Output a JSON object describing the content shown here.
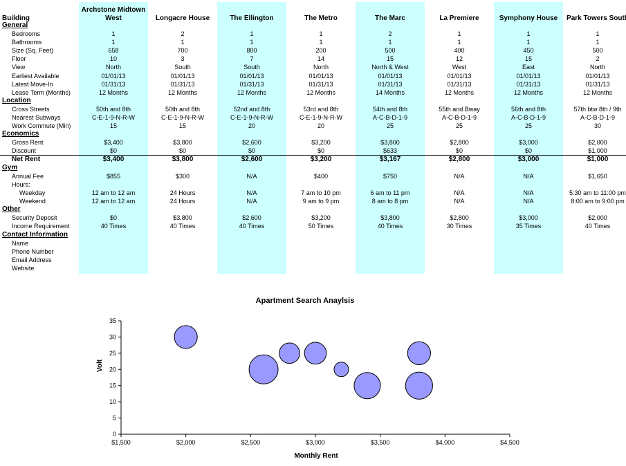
{
  "table": {
    "corner_label": "Building",
    "buildings": [
      "Archstone Midtown West",
      "Longacre House",
      "The Ellington",
      "The Metro",
      "The Marc",
      "La Premiere",
      "Symphony House",
      "Park Towers South"
    ],
    "highlight_color": "#ccffff",
    "rows": [
      {
        "type": "section",
        "label": "General"
      },
      {
        "type": "item",
        "label": "Bedrooms",
        "values": [
          "1",
          "2",
          "1",
          "1",
          "2",
          "1",
          "1",
          "1"
        ]
      },
      {
        "type": "item",
        "label": "Bathrooms",
        "values": [
          "1",
          "1",
          "1",
          "1",
          "1",
          "1",
          "1",
          "1"
        ]
      },
      {
        "type": "item",
        "label": "Size (Sq. Feet)",
        "values": [
          "658",
          "700",
          "800",
          "200",
          "500",
          "400",
          "450",
          "500"
        ]
      },
      {
        "type": "item",
        "label": "Floor",
        "values": [
          "10",
          "3",
          "7",
          "14",
          "15",
          "12",
          "15",
          "2"
        ]
      },
      {
        "type": "item",
        "label": "View",
        "values": [
          "North",
          "South",
          "South",
          "North",
          "North & West",
          "West",
          "East",
          "North"
        ]
      },
      {
        "type": "item",
        "label": "Earliest Available",
        "values": [
          "01/01/13",
          "01/01/13",
          "01/01/13",
          "01/01/13",
          "01/01/13",
          "01/01/13",
          "01/01/13",
          "01/01/13"
        ]
      },
      {
        "type": "item",
        "label": "Latest Move-In",
        "values": [
          "01/31/13",
          "01/31/13",
          "01/31/13",
          "01/31/13",
          "01/31/13",
          "01/31/13",
          "01/31/13",
          "01/31/13"
        ]
      },
      {
        "type": "item",
        "label": "Lease Term (Months)",
        "values": [
          "12 Months",
          "12 Months",
          "12 Months",
          "12 Months",
          "14 Months",
          "12 Months",
          "12 Months",
          "12 Months"
        ]
      },
      {
        "type": "section",
        "label": "Location"
      },
      {
        "type": "item",
        "label": "Cross Streets",
        "values": [
          "50th and 8th",
          "50th and 8th",
          "52nd and 8th",
          "53rd and 8th",
          "54th and 8th",
          "55th and Bway",
          "56th and 8th",
          "57th btw 8th / 9th"
        ]
      },
      {
        "type": "item",
        "label": "Nearest Subways",
        "values": [
          "C-E-1-9-N-R-W",
          "C-E-1-9-N-R-W",
          "C-E-1-9-N-R-W",
          "C-E-1-9-N-R-W",
          "A-C-B-D-1-9",
          "A-C-B-D-1-9",
          "A-C-B-D-1-9",
          "A-C-B-D-1-9"
        ]
      },
      {
        "type": "item",
        "label": "Work Commute (Min)",
        "values": [
          "15",
          "15",
          "20",
          "20",
          "25",
          "25",
          "25",
          "30"
        ]
      },
      {
        "type": "section",
        "label": "Economics"
      },
      {
        "type": "item",
        "label": "Gross Rent",
        "values": [
          "$3,400",
          "$3,800",
          "$2,600",
          "$3,200",
          "$3,800",
          "$2,800",
          "$3,000",
          "$2,000"
        ]
      },
      {
        "type": "item",
        "label": "Discount",
        "values": [
          "$0",
          "$0",
          "$0",
          "$0",
          "$633",
          "$0",
          "$0",
          "$1,000"
        ]
      },
      {
        "type": "net",
        "label": "Net Rent",
        "values": [
          "$3,400",
          "$3,800",
          "$2,600",
          "$3,200",
          "$3,167",
          "$2,800",
          "$3,000",
          "$1,000"
        ]
      },
      {
        "type": "section",
        "label": "Gym"
      },
      {
        "type": "item",
        "label": "Annual Fee",
        "values": [
          "$855",
          "$300",
          "N/A",
          "$400",
          "$750",
          "N/A",
          "N/A",
          "$1,650"
        ]
      },
      {
        "type": "item",
        "label": "Hours:",
        "values": [
          "",
          "",
          "",
          "",
          "",
          "",
          "",
          ""
        ]
      },
      {
        "type": "sub",
        "label": "Weekday",
        "values": [
          "12 am to 12 am",
          "24 Hours",
          "N/A",
          "7 am to 10 pm",
          "6 am to 11 pm",
          "N/A",
          "N/A",
          "5:30 am to 11:00 pm"
        ]
      },
      {
        "type": "sub",
        "label": "Weekend",
        "values": [
          "12 am to 12 am",
          "24 Hours",
          "N/A",
          "9 am to 9 pm",
          "8 am to 8 pm",
          "N/A",
          "N/A",
          "8:00 am to 9:00 pm"
        ]
      },
      {
        "type": "section",
        "label": "Other"
      },
      {
        "type": "item",
        "label": "Security Deposit",
        "values": [
          "$0",
          "$3,800",
          "$2,600",
          "$3,200",
          "$3,800",
          "$2,800",
          "$3,000",
          "$2,000"
        ]
      },
      {
        "type": "item",
        "label": "Income Requirement",
        "values": [
          "40 Times",
          "40 Times",
          "40 Times",
          "50 Times",
          "40 Times",
          "30 Times",
          "35 Times",
          "40 Times"
        ]
      },
      {
        "type": "section",
        "label": "Contact Information"
      },
      {
        "type": "item",
        "label": "Name",
        "values": [
          "",
          "",
          "",
          "",
          "",
          "",
          "",
          ""
        ]
      },
      {
        "type": "item",
        "label": "Phone Number",
        "values": [
          "",
          "",
          "",
          "",
          "",
          "",
          "",
          ""
        ]
      },
      {
        "type": "item",
        "label": "Email Address",
        "values": [
          "",
          "",
          "",
          "",
          "",
          "",
          "",
          ""
        ]
      },
      {
        "type": "item",
        "label": "Website",
        "values": [
          "",
          "",
          "",
          "",
          "",
          "",
          "",
          ""
        ]
      }
    ]
  },
  "chart_data": {
    "type": "scatter",
    "subtype": "bubble",
    "title": "Apartment Search Anaylsis",
    "xlabel": "Monthly Rent",
    "ylabel": "Volt",
    "xlim": [
      1500,
      4500
    ],
    "ylim": [
      0,
      35
    ],
    "x_ticks": [
      1500,
      2000,
      2500,
      3000,
      3500,
      4000,
      4500
    ],
    "x_tick_labels": [
      "$1,500",
      "$2,000",
      "$2,500",
      "$3,000",
      "$3,500",
      "$4,000",
      "$4,500"
    ],
    "y_ticks": [
      0,
      5,
      10,
      15,
      20,
      25,
      30,
      35
    ],
    "y_tick_labels": [
      "0",
      "5",
      "10",
      "15",
      "20",
      "25",
      "30",
      "35"
    ],
    "bubble_color": "#9999ff",
    "points": [
      {
        "x": 2000,
        "y": 30,
        "size": 500
      },
      {
        "x": 2600,
        "y": 20,
        "size": 800
      },
      {
        "x": 2800,
        "y": 25,
        "size": 400
      },
      {
        "x": 3000,
        "y": 25,
        "size": 450
      },
      {
        "x": 3200,
        "y": 20,
        "size": 200
      },
      {
        "x": 3400,
        "y": 15,
        "size": 658
      },
      {
        "x": 3800,
        "y": 25,
        "size": 500
      },
      {
        "x": 3800,
        "y": 15,
        "size": 700
      }
    ]
  }
}
